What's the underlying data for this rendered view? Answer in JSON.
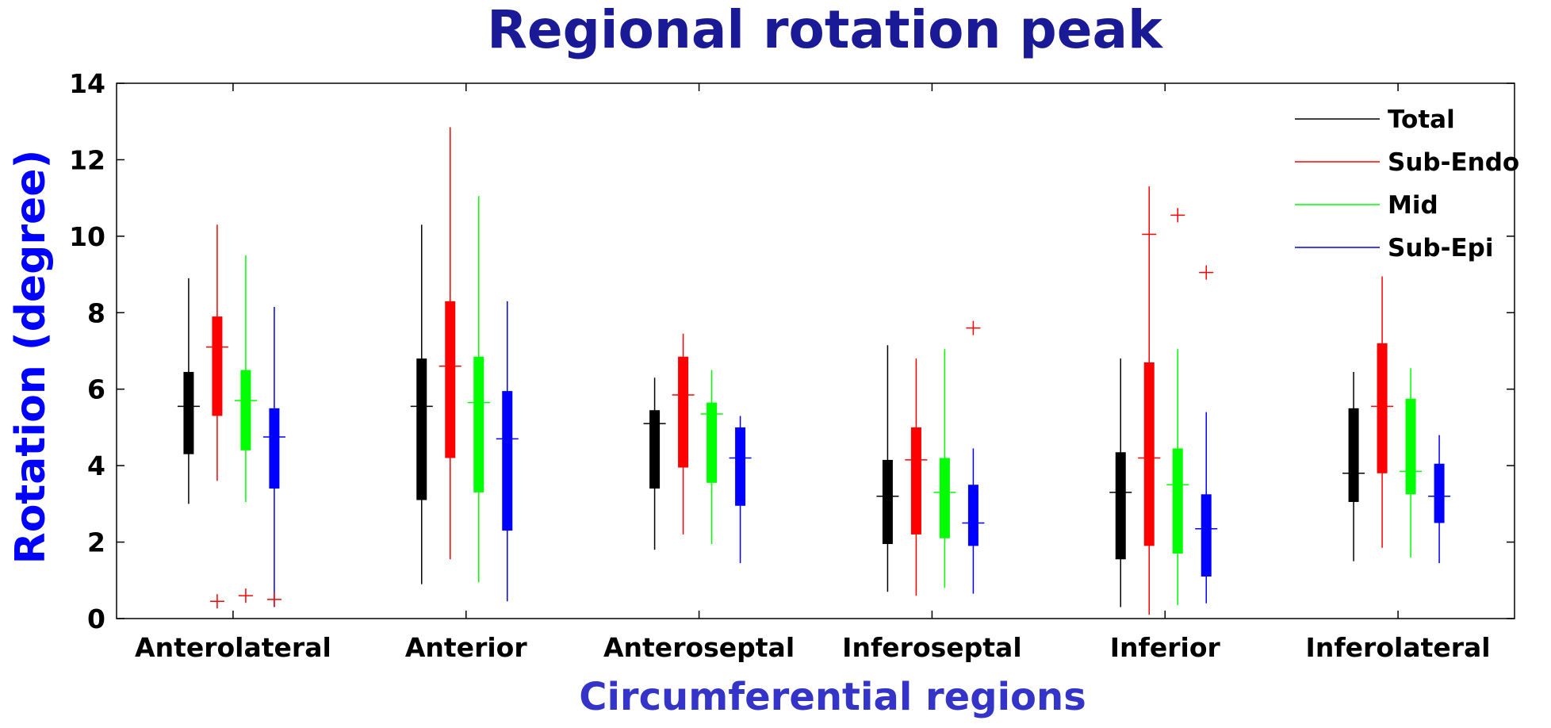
{
  "chart_data": {
    "type": "boxplot",
    "title": "Regional rotation peak",
    "xlabel": "Circumferential regions",
    "ylabel": "Rotation (degree)",
    "ylim": [
      0,
      14
    ],
    "yticks": [
      0,
      2,
      4,
      6,
      8,
      10,
      12,
      14
    ],
    "categories": [
      "Anterolateral",
      "Anterior",
      "Anteroseptal",
      "Inferoseptal",
      "Inferior",
      "Inferolateral"
    ],
    "legend": {
      "position": "top-right",
      "entries": [
        "Total",
        "Sub-Endo",
        "Mid",
        "Sub-Epi"
      ]
    },
    "series": [
      {
        "name": "Total",
        "color": "#000000",
        "boxes": [
          {
            "min": 3.0,
            "q1": 4.3,
            "median": 5.55,
            "q3": 6.45,
            "max": 8.9,
            "outliers": []
          },
          {
            "min": 0.9,
            "q1": 3.1,
            "median": 5.55,
            "q3": 6.8,
            "max": 10.3,
            "outliers": []
          },
          {
            "min": 1.8,
            "q1": 3.4,
            "median": 5.1,
            "q3": 5.45,
            "max": 6.3,
            "outliers": []
          },
          {
            "min": 0.7,
            "q1": 1.95,
            "median": 3.2,
            "q3": 4.15,
            "max": 7.15,
            "outliers": []
          },
          {
            "min": 0.3,
            "q1": 1.55,
            "median": 3.3,
            "q3": 4.35,
            "max": 6.8,
            "outliers": []
          },
          {
            "min": 1.5,
            "q1": 3.05,
            "median": 3.8,
            "q3": 5.5,
            "max": 6.45,
            "outliers": []
          }
        ]
      },
      {
        "name": "Sub-Endo",
        "color": "#ff0000",
        "boxes": [
          {
            "min": 3.6,
            "q1": 5.3,
            "median": 7.1,
            "q3": 7.9,
            "max": 10.3,
            "outliers": [
              0.45
            ]
          },
          {
            "min": 1.55,
            "q1": 4.2,
            "median": 6.6,
            "q3": 8.3,
            "max": 12.85,
            "outliers": []
          },
          {
            "min": 2.2,
            "q1": 3.95,
            "median": 5.85,
            "q3": 6.85,
            "max": 7.45,
            "outliers": []
          },
          {
            "min": 0.6,
            "q1": 2.2,
            "median": 4.15,
            "q3": 5.0,
            "max": 6.8,
            "outliers": []
          },
          {
            "min": 0.1,
            "q1": 1.9,
            "median": 4.2,
            "q3": 6.7,
            "max": 11.3,
            "outliers": [
              10.05
            ]
          },
          {
            "min": 1.85,
            "q1": 3.8,
            "median": 5.55,
            "q3": 7.2,
            "max": 8.95,
            "outliers": []
          }
        ]
      },
      {
        "name": "Mid",
        "color": "#00ff00",
        "boxes": [
          {
            "min": 3.05,
            "q1": 4.4,
            "median": 5.7,
            "q3": 6.5,
            "max": 9.5,
            "outliers": [
              0.6
            ]
          },
          {
            "min": 0.95,
            "q1": 3.3,
            "median": 5.65,
            "q3": 6.85,
            "max": 11.05,
            "outliers": []
          },
          {
            "min": 1.95,
            "q1": 3.55,
            "median": 5.35,
            "q3": 5.65,
            "max": 6.5,
            "outliers": []
          },
          {
            "min": 0.8,
            "q1": 2.1,
            "median": 3.3,
            "q3": 4.2,
            "max": 7.05,
            "outliers": []
          },
          {
            "min": 0.35,
            "q1": 1.7,
            "median": 3.5,
            "q3": 4.45,
            "max": 7.05,
            "outliers": [
              10.55
            ]
          },
          {
            "min": 1.6,
            "q1": 3.25,
            "median": 3.85,
            "q3": 5.75,
            "max": 6.55,
            "outliers": []
          }
        ]
      },
      {
        "name": "Sub-Epi",
        "color": "#0000ff",
        "boxes": [
          {
            "min": 0.3,
            "q1": 3.4,
            "median": 4.75,
            "q3": 5.5,
            "max": 8.15,
            "outliers": [
              0.5
            ]
          },
          {
            "min": 0.45,
            "q1": 2.3,
            "median": 4.7,
            "q3": 5.95,
            "max": 8.3,
            "outliers": []
          },
          {
            "min": 1.45,
            "q1": 2.95,
            "median": 4.2,
            "q3": 5.0,
            "max": 5.3,
            "outliers": []
          },
          {
            "min": 0.65,
            "q1": 1.9,
            "median": 2.5,
            "q3": 3.5,
            "max": 4.45,
            "outliers": [
              7.6
            ]
          },
          {
            "min": 0.4,
            "q1": 1.1,
            "median": 2.35,
            "q3": 3.25,
            "max": 5.4,
            "outliers": [
              9.05
            ]
          },
          {
            "min": 1.45,
            "q1": 2.5,
            "median": 3.2,
            "q3": 4.05,
            "max": 4.8,
            "outliers": []
          }
        ]
      }
    ]
  }
}
